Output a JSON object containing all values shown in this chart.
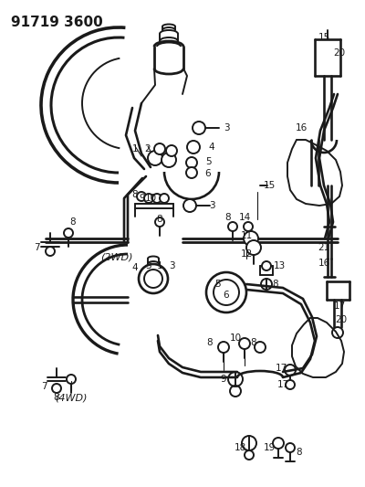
{
  "title": "91719 3600",
  "bg_color": "#ffffff",
  "line_color": "#1a1a1a",
  "lw": 1.4,
  "label_2wd": "(2WD)",
  "label_4wd": "(4WD)"
}
